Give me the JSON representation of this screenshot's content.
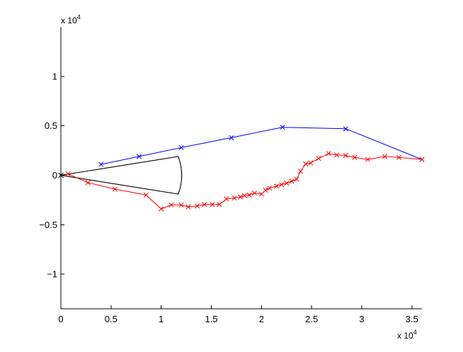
{
  "chart_data": {
    "type": "line",
    "title": "",
    "xlabel": "",
    "ylabel": "",
    "x_multiplier_label": {
      "base": "x 10",
      "exponent": "4"
    },
    "y_multiplier_label": {
      "base": "x 10",
      "exponent": "4"
    },
    "xlim": [
      0,
      36000
    ],
    "ylim": [
      -13500,
      15000
    ],
    "xticks": [
      {
        "value": 0,
        "label": "0"
      },
      {
        "value": 5000,
        "label": "0.5"
      },
      {
        "value": 10000,
        "label": "1"
      },
      {
        "value": 15000,
        "label": "1.5"
      },
      {
        "value": 20000,
        "label": "2"
      },
      {
        "value": 25000,
        "label": "2.5"
      },
      {
        "value": 30000,
        "label": "3"
      },
      {
        "value": 35000,
        "label": "3.5"
      }
    ],
    "yticks": [
      {
        "value": 10000,
        "label": "1"
      },
      {
        "value": 5000,
        "label": "0.5"
      },
      {
        "value": 0,
        "label": "0"
      },
      {
        "value": -5000,
        "label": "−0.5"
      },
      {
        "value": -10000,
        "label": "−1"
      }
    ],
    "grid": false,
    "legend": "none",
    "series": [
      {
        "color": "#0000ff",
        "marker": "x",
        "points": [
          [
            4000,
            1100
          ],
          [
            7800,
            1900
          ],
          [
            12000,
            2800
          ],
          [
            17000,
            3800
          ],
          [
            22100,
            4850
          ],
          [
            28400,
            4700
          ],
          [
            36000,
            1600
          ]
        ]
      },
      {
        "color": "#ff0000",
        "marker": "x",
        "points": [
          [
            700,
            150
          ],
          [
            2700,
            -750
          ],
          [
            5400,
            -1400
          ],
          [
            8500,
            -2000
          ],
          [
            10000,
            -3400
          ],
          [
            11000,
            -3000
          ],
          [
            12000,
            -3000
          ],
          [
            12700,
            -3200
          ],
          [
            13600,
            -3100
          ],
          [
            14300,
            -2950
          ],
          [
            15100,
            -2950
          ],
          [
            15800,
            -2950
          ],
          [
            16500,
            -2400
          ],
          [
            17300,
            -2300
          ],
          [
            17900,
            -2200
          ],
          [
            18300,
            -2050
          ],
          [
            18800,
            -2000
          ],
          [
            19300,
            -1800
          ],
          [
            20000,
            -1900
          ],
          [
            20400,
            -1500
          ],
          [
            20800,
            -1300
          ],
          [
            21500,
            -1100
          ],
          [
            22000,
            -950
          ],
          [
            22500,
            -800
          ],
          [
            23000,
            -600
          ],
          [
            23500,
            -400
          ],
          [
            23900,
            400
          ],
          [
            24400,
            1150
          ],
          [
            24900,
            1250
          ],
          [
            25700,
            1700
          ],
          [
            26700,
            2200
          ],
          [
            27500,
            2050
          ],
          [
            28400,
            2000
          ],
          [
            29300,
            1800
          ],
          [
            30600,
            1600
          ],
          [
            32300,
            1900
          ],
          [
            33700,
            1800
          ],
          [
            36000,
            1600
          ]
        ]
      }
    ],
    "shapes": [
      {
        "type": "sector",
        "color": "#000000",
        "vertex": [
          0,
          0
        ],
        "edge_points": [
          [
            11700,
            1900
          ],
          [
            11700,
            -1900
          ]
        ],
        "arc_control": [
          12400,
          0
        ]
      }
    ]
  }
}
